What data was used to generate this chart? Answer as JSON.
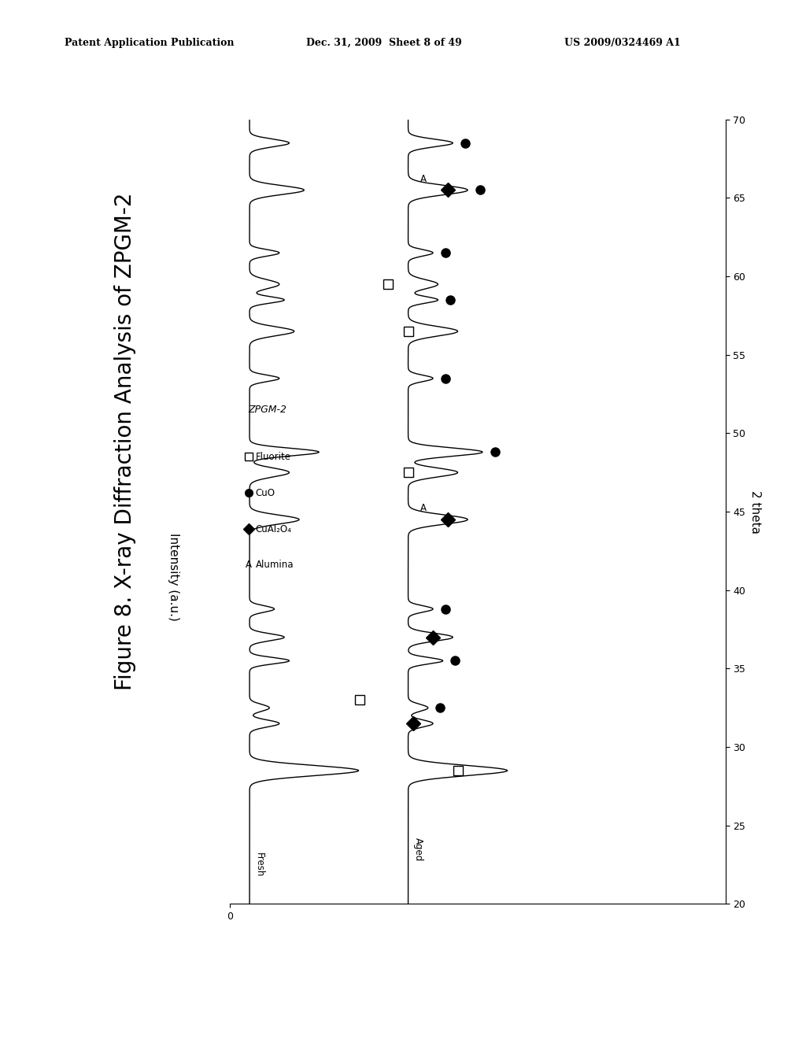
{
  "header_left": "Patent Application Publication",
  "header_mid": "Dec. 31, 2009  Sheet 8 of 49",
  "header_right": "US 2009/0324469 A1",
  "fig_title": "Figure 8. X-ray Diffraction Analysis of ZPGM-2",
  "chart_subtitle": "ZPGM-2",
  "ylabel": "2 theta",
  "xlabel": "Intensity (a.u.)",
  "y_min": 20,
  "y_max": 70,
  "x_min": 0,
  "x_max": 100,
  "yticks": [
    20,
    25,
    30,
    35,
    40,
    45,
    50,
    55,
    60,
    65,
    70
  ],
  "fresh_base": 4,
  "aged_base": 36,
  "fresh_peaks_centers": [
    28.5,
    31.5,
    32.5,
    35.5,
    37.0,
    38.8,
    44.5,
    47.5,
    48.8,
    53.5,
    56.5,
    58.5,
    59.5,
    61.5,
    65.5,
    68.5
  ],
  "fresh_peaks_widths": [
    0.32,
    0.22,
    0.22,
    0.2,
    0.22,
    0.2,
    0.28,
    0.28,
    0.24,
    0.2,
    0.28,
    0.2,
    0.28,
    0.2,
    0.28,
    0.24
  ],
  "fresh_peaks_heights": [
    22,
    6,
    4,
    8,
    7,
    5,
    10,
    8,
    14,
    6,
    9,
    7,
    6,
    6,
    11,
    8
  ],
  "aged_peaks_centers": [
    28.5,
    31.5,
    32.5,
    35.5,
    37.0,
    38.8,
    44.5,
    47.5,
    48.8,
    53.5,
    56.5,
    58.5,
    59.5,
    61.5,
    65.5,
    68.5
  ],
  "aged_peaks_widths": [
    0.32,
    0.22,
    0.22,
    0.2,
    0.25,
    0.2,
    0.3,
    0.28,
    0.26,
    0.2,
    0.3,
    0.2,
    0.28,
    0.2,
    0.3,
    0.24
  ],
  "aged_peaks_heights": [
    20,
    5,
    4,
    7,
    9,
    5,
    12,
    10,
    15,
    5,
    10,
    6,
    6,
    5,
    12,
    9
  ],
  "fluorite_2theta": [
    28.5,
    33.0,
    47.5,
    56.5,
    59.5
  ],
  "cuo_2theta": [
    32.5,
    35.5,
    38.8,
    48.8,
    53.5,
    58.5,
    61.5,
    65.5,
    68.5
  ],
  "cual2o4_2theta": [
    31.5,
    37.0,
    44.5,
    65.5
  ],
  "alumina_2theta": [
    44.5,
    65.5
  ],
  "bg_color": "#ffffff",
  "line_color": "#000000"
}
